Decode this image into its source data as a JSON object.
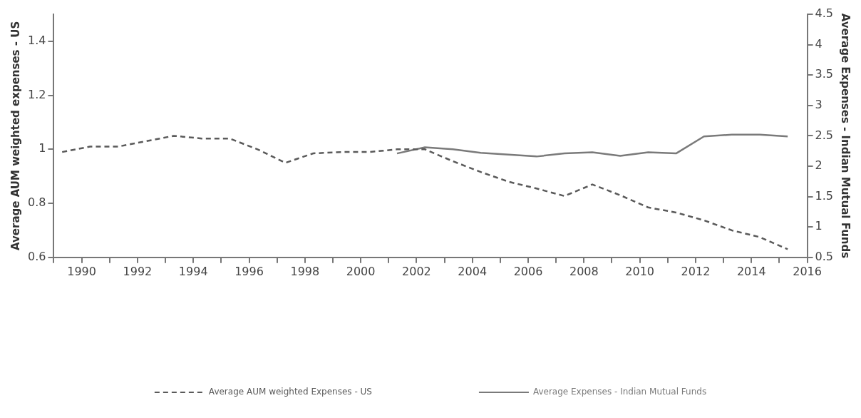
{
  "chart_data": {
    "type": "line",
    "ylabel": "Average AUM weighted expenses - US",
    "y2label": "Average Expenses - Indian Mutual Funds",
    "xlim": [
      1989,
      2016
    ],
    "xticks": [
      {
        "value": 1989,
        "label": null
      },
      1990,
      {
        "value": 1991,
        "label": null
      },
      1992,
      {
        "value": 1993,
        "label": null
      },
      1994,
      {
        "value": 1995,
        "label": null
      },
      1996,
      {
        "value": 1997,
        "label": null
      },
      1998,
      {
        "value": 1999,
        "label": null
      },
      2000,
      {
        "value": 2001,
        "label": null
      },
      2002,
      {
        "value": 2003,
        "label": null
      },
      2004,
      {
        "value": 2005,
        "label": null
      },
      2006,
      {
        "value": 2007,
        "label": null
      },
      2008,
      {
        "value": 2009,
        "label": null
      },
      2010,
      {
        "value": 2011,
        "label": null
      },
      2012,
      {
        "value": 2013,
        "label": null
      },
      2014,
      {
        "value": 2015,
        "label": null
      },
      2016
    ],
    "ylim": [
      0.6,
      1.5
    ],
    "yticks": [
      0.6,
      0.8,
      1.0,
      1.2,
      1.4
    ],
    "y2lim": [
      0.5,
      4.5
    ],
    "y2ticks": [
      0.5,
      1.0,
      1.5,
      2.0,
      2.5,
      3.0,
      3.5,
      4.0,
      4.5
    ],
    "grid": false,
    "legend": "bottom",
    "marker": "none",
    "series": [
      {
        "name": "Average AUM weighted Expenses - US",
        "color": "#5a5a5a",
        "line_style": "dashed",
        "x": [
          1989.3,
          1990.3,
          1991.3,
          1992.3,
          1993.3,
          1994.3,
          1995.3,
          1996.3,
          1997.3,
          1998.3,
          1999.3,
          2000.3,
          2001.3,
          2002.3,
          2003.3,
          2004.3,
          2005.3,
          2006.3,
          2007.3,
          2008.3,
          2009.3,
          2010.3,
          2011.3,
          2012.3,
          2013.3,
          2014.3,
          2015.3
        ],
        "values": [
          0.99,
          1.01,
          1.01,
          1.03,
          1.05,
          1.04,
          1.04,
          1.0,
          0.95,
          0.985,
          0.99,
          0.99,
          1.0,
          1.0,
          0.956,
          0.916,
          0.88,
          0.855,
          0.827,
          0.87,
          0.83,
          0.785,
          0.766,
          0.737,
          0.7,
          0.675,
          0.63
        ]
      },
      {
        "name": "Average Expenses - Indian Mutual Funds",
        "color": "#7a7a7a",
        "line_style": "solid",
        "axis": "y2",
        "x": [
          2001.3,
          2002.3,
          2003.3,
          2004.3,
          2005.3,
          2006.3,
          2007.3,
          2008.3,
          2009.3,
          2010.3,
          2011.3,
          2012.3,
          2013.3,
          2014.3,
          2015.3
        ],
        "values": [
          2.21,
          2.31,
          2.28,
          2.22,
          2.19,
          2.16,
          2.21,
          2.23,
          2.17,
          2.23,
          2.21,
          2.49,
          2.52,
          2.52,
          2.49
        ]
      }
    ]
  }
}
